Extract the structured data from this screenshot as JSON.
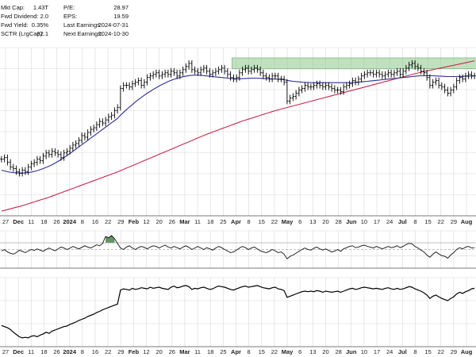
{
  "stats": [
    {
      "label": "Mkt Cap:",
      "value": "1.43T"
    },
    {
      "label": "Fwd Dividend:",
      "value": "2.0"
    },
    {
      "label": "Fwd Yield:",
      "value": "0.35%"
    },
    {
      "label": "SCTR (LrgCap):",
      "value": "82.1"
    },
    {
      "label": "P/E:",
      "value": "28.97"
    },
    {
      "label": "EPS:",
      "value": "19.59"
    },
    {
      "label": "Last Earnings:",
      "value": "2024-07-31"
    },
    {
      "label": "Next Earnings:",
      "value": "2024-10-30"
    }
  ],
  "colors": {
    "price_bar": "#000000",
    "ma_short": "#2f2f9a",
    "ma_long": "#c8284a",
    "resistance_zone": "#8cc88c",
    "oscillator_fill": "#3c7a3c",
    "grid": "#d8d8d8"
  },
  "chart_data": {
    "type": "line",
    "x_axis_labels": [
      {
        "text": "27",
        "bold": false
      },
      {
        "text": "Dec",
        "bold": true
      },
      {
        "text": "11",
        "bold": false
      },
      {
        "text": "18",
        "bold": false
      },
      {
        "text": "26",
        "bold": false
      },
      {
        "text": "2024",
        "bold": true
      },
      {
        "text": "8",
        "bold": false
      },
      {
        "text": "16",
        "bold": false
      },
      {
        "text": "22",
        "bold": false
      },
      {
        "text": "29",
        "bold": false
      },
      {
        "text": "Feb",
        "bold": true
      },
      {
        "text": "12",
        "bold": false
      },
      {
        "text": "20",
        "bold": false
      },
      {
        "text": "26",
        "bold": false
      },
      {
        "text": "Mar",
        "bold": true
      },
      {
        "text": "11",
        "bold": false
      },
      {
        "text": "18",
        "bold": false
      },
      {
        "text": "25",
        "bold": false
      },
      {
        "text": "Apr",
        "bold": true
      },
      {
        "text": "8",
        "bold": false
      },
      {
        "text": "15",
        "bold": false
      },
      {
        "text": "22",
        "bold": false
      },
      {
        "text": "May",
        "bold": true
      },
      {
        "text": "6",
        "bold": false
      },
      {
        "text": "13",
        "bold": false
      },
      {
        "text": "20",
        "bold": false
      },
      {
        "text": "28",
        "bold": false
      },
      {
        "text": "Jun",
        "bold": true
      },
      {
        "text": "10",
        "bold": false
      },
      {
        "text": "17",
        "bold": false
      },
      {
        "text": "24",
        "bold": false
      },
      {
        "text": "Jul",
        "bold": true
      },
      {
        "text": "8",
        "bold": false
      },
      {
        "text": "15",
        "bold": false
      },
      {
        "text": "22",
        "bold": false
      },
      {
        "text": "29",
        "bold": false
      },
      {
        "text": "Aug",
        "bold": true
      }
    ],
    "price_close": [
      0.33,
      0.34,
      0.31,
      0.28,
      0.27,
      0.25,
      0.24,
      0.26,
      0.25,
      0.28,
      0.3,
      0.31,
      0.33,
      0.32,
      0.35,
      0.37,
      0.36,
      0.38,
      0.37,
      0.36,
      0.34,
      0.37,
      0.38,
      0.4,
      0.42,
      0.43,
      0.45,
      0.48,
      0.47,
      0.5,
      0.52,
      0.53,
      0.55,
      0.57,
      0.56,
      0.58,
      0.6,
      0.61,
      0.64,
      0.66,
      0.78,
      0.8,
      0.8,
      0.79,
      0.81,
      0.82,
      0.83,
      0.8,
      0.82,
      0.85,
      0.86,
      0.87,
      0.88,
      0.86,
      0.87,
      0.88,
      0.87,
      0.89,
      0.88,
      0.86,
      0.88,
      0.9,
      0.92,
      0.94,
      0.9,
      0.89,
      0.88,
      0.9,
      0.91,
      0.89,
      0.87,
      0.88,
      0.89,
      0.9,
      0.91,
      0.89,
      0.87,
      0.85,
      0.84,
      0.85,
      0.88,
      0.9,
      0.91,
      0.89,
      0.9,
      0.91,
      0.9,
      0.88,
      0.86,
      0.85,
      0.84,
      0.86,
      0.86,
      0.84,
      0.84,
      0.82,
      0.7,
      0.72,
      0.73,
      0.75,
      0.77,
      0.78,
      0.8,
      0.79,
      0.79,
      0.8,
      0.81,
      0.8,
      0.79,
      0.8,
      0.79,
      0.78,
      0.77,
      0.77,
      0.76,
      0.79,
      0.8,
      0.81,
      0.83,
      0.82,
      0.84,
      0.86,
      0.87,
      0.88,
      0.88,
      0.87,
      0.88,
      0.87,
      0.86,
      0.87,
      0.88,
      0.87,
      0.88,
      0.89,
      0.87,
      0.89,
      0.91,
      0.93,
      0.94,
      0.92,
      0.91,
      0.89,
      0.88,
      0.85,
      0.8,
      0.82,
      0.83,
      0.8,
      0.79,
      0.77,
      0.75,
      0.77,
      0.79,
      0.83,
      0.85,
      0.84,
      0.86,
      0.87,
      0.86,
      0.86
    ],
    "ma_short": [
      0.26,
      0.255,
      0.25,
      0.247,
      0.245,
      0.243,
      0.242,
      0.242,
      0.243,
      0.245,
      0.248,
      0.252,
      0.257,
      0.263,
      0.27,
      0.278,
      0.286,
      0.295,
      0.305,
      0.316,
      0.328,
      0.34,
      0.353,
      0.366,
      0.38,
      0.394,
      0.408,
      0.422,
      0.436,
      0.45,
      0.464,
      0.478,
      0.492,
      0.506,
      0.52,
      0.534,
      0.548,
      0.562,
      0.576,
      0.59,
      0.61,
      0.628,
      0.645,
      0.662,
      0.678,
      0.694,
      0.709,
      0.723,
      0.737,
      0.75,
      0.762,
      0.774,
      0.785,
      0.796,
      0.806,
      0.815,
      0.824,
      0.832,
      0.839,
      0.845,
      0.85,
      0.855,
      0.859,
      0.862,
      0.864,
      0.865,
      0.865,
      0.864,
      0.862,
      0.86,
      0.858,
      0.856,
      0.854,
      0.852,
      0.85,
      0.848,
      0.846,
      0.844,
      0.843,
      0.842,
      0.842,
      0.843,
      0.844,
      0.845,
      0.846,
      0.846,
      0.846,
      0.845,
      0.844,
      0.843,
      0.842,
      0.841,
      0.84,
      0.839,
      0.838,
      0.836,
      0.832,
      0.829,
      0.826,
      0.824,
      0.822,
      0.82,
      0.819,
      0.818,
      0.817,
      0.817,
      0.817,
      0.817,
      0.817,
      0.817,
      0.817,
      0.817,
      0.817,
      0.817,
      0.817,
      0.817,
      0.817,
      0.817,
      0.818,
      0.819,
      0.82,
      0.822,
      0.824,
      0.826,
      0.828,
      0.83,
      0.832,
      0.834,
      0.836,
      0.838,
      0.84,
      0.842,
      0.844,
      0.846,
      0.848,
      0.85,
      0.852,
      0.854,
      0.856,
      0.858,
      0.86,
      0.861,
      0.862,
      0.862,
      0.862,
      0.861,
      0.86,
      0.859,
      0.858,
      0.857,
      0.856,
      0.856,
      0.856,
      0.856,
      0.856,
      0.857,
      0.858,
      0.859,
      0.86,
      0.861
    ],
    "ma_long": [
      0.0,
      0.004,
      0.009,
      0.014,
      0.019,
      0.024,
      0.029,
      0.034,
      0.04,
      0.046,
      0.052,
      0.058,
      0.064,
      0.07,
      0.076,
      0.082,
      0.088,
      0.095,
      0.102,
      0.109,
      0.116,
      0.123,
      0.13,
      0.137,
      0.144,
      0.151,
      0.158,
      0.165,
      0.172,
      0.179,
      0.186,
      0.193,
      0.2,
      0.207,
      0.214,
      0.221,
      0.228,
      0.235,
      0.242,
      0.249,
      0.257,
      0.265,
      0.273,
      0.281,
      0.289,
      0.297,
      0.305,
      0.313,
      0.321,
      0.329,
      0.337,
      0.345,
      0.353,
      0.361,
      0.369,
      0.377,
      0.385,
      0.393,
      0.401,
      0.409,
      0.417,
      0.425,
      0.433,
      0.441,
      0.449,
      0.457,
      0.465,
      0.473,
      0.481,
      0.489,
      0.496,
      0.503,
      0.51,
      0.517,
      0.524,
      0.531,
      0.538,
      0.545,
      0.552,
      0.559,
      0.566,
      0.573,
      0.579,
      0.585,
      0.591,
      0.597,
      0.603,
      0.609,
      0.615,
      0.621,
      0.627,
      0.633,
      0.639,
      0.644,
      0.649,
      0.654,
      0.659,
      0.664,
      0.669,
      0.674,
      0.679,
      0.684,
      0.689,
      0.694,
      0.699,
      0.704,
      0.709,
      0.714,
      0.719,
      0.724,
      0.729,
      0.734,
      0.739,
      0.744,
      0.749,
      0.754,
      0.759,
      0.764,
      0.769,
      0.774,
      0.779,
      0.784,
      0.789,
      0.794,
      0.799,
      0.804,
      0.809,
      0.814,
      0.819,
      0.824,
      0.829,
      0.834,
      0.839,
      0.844,
      0.849,
      0.854,
      0.859,
      0.864,
      0.869,
      0.874,
      0.879,
      0.884,
      0.888,
      0.892,
      0.896,
      0.9,
      0.904,
      0.908,
      0.912,
      0.916,
      0.92,
      0.924,
      0.928,
      0.932,
      0.936,
      0.94,
      0.944,
      0.948,
      0.952,
      0.956
    ],
    "resistance_zone": {
      "from_index": 78,
      "to_index": 159,
      "high": 0.975,
      "low": 0.905
    },
    "oscillator": [
      0.45,
      0.5,
      0.42,
      0.38,
      0.35,
      0.4,
      0.48,
      0.44,
      0.4,
      0.45,
      0.5,
      0.47,
      0.52,
      0.48,
      0.44,
      0.5,
      0.55,
      0.5,
      0.46,
      0.52,
      0.58,
      0.55,
      0.5,
      0.54,
      0.6,
      0.56,
      0.52,
      0.57,
      0.62,
      0.58,
      0.55,
      0.6,
      0.65,
      0.62,
      0.7,
      0.92,
      0.88,
      0.95,
      0.85,
      0.7,
      0.55,
      0.5,
      0.58,
      0.62,
      0.55,
      0.5,
      0.56,
      0.6,
      0.57,
      0.52,
      0.58,
      0.62,
      0.6,
      0.55,
      0.6,
      0.64,
      0.58,
      0.55,
      0.6,
      0.56,
      0.52,
      0.58,
      0.62,
      0.57,
      0.5,
      0.55,
      0.6,
      0.55,
      0.5,
      0.56,
      0.52,
      0.48,
      0.55,
      0.6,
      0.56,
      0.5,
      0.45,
      0.4,
      0.42,
      0.48,
      0.55,
      0.6,
      0.56,
      0.5,
      0.55,
      0.58,
      0.52,
      0.46,
      0.42,
      0.4,
      0.44,
      0.5,
      0.46,
      0.4,
      0.42,
      0.35,
      0.2,
      0.28,
      0.32,
      0.38,
      0.44,
      0.5,
      0.55,
      0.5,
      0.48,
      0.54,
      0.58,
      0.52,
      0.48,
      0.52,
      0.47,
      0.42,
      0.45,
      0.5,
      0.44,
      0.52,
      0.56,
      0.6,
      0.62,
      0.56,
      0.58,
      0.62,
      0.64,
      0.6,
      0.58,
      0.55,
      0.6,
      0.56,
      0.52,
      0.56,
      0.6,
      0.56,
      0.58,
      0.62,
      0.56,
      0.6,
      0.66,
      0.7,
      0.68,
      0.6,
      0.55,
      0.48,
      0.42,
      0.32,
      0.25,
      0.35,
      0.42,
      0.36,
      0.3,
      0.28,
      0.22,
      0.32,
      0.4,
      0.5,
      0.56,
      0.52,
      0.58,
      0.6,
      0.55,
      0.56
    ],
    "relative_line": [
      0.32,
      0.3,
      0.28,
      0.25,
      0.2,
      0.16,
      0.12,
      0.1,
      0.11,
      0.1,
      0.13,
      0.14,
      0.12,
      0.15,
      0.17,
      0.2,
      0.18,
      0.22,
      0.24,
      0.26,
      0.28,
      0.3,
      0.31,
      0.34,
      0.36,
      0.38,
      0.41,
      0.43,
      0.45,
      0.48,
      0.5,
      0.52,
      0.55,
      0.57,
      0.6,
      0.62,
      0.64,
      0.66,
      0.68,
      0.7,
      0.95,
      0.97,
      0.96,
      0.95,
      0.98,
      0.96,
      0.97,
      0.99,
      0.98,
      0.97,
      1.0,
      0.98,
      0.99,
      1.0,
      0.98,
      0.97,
      0.96,
      1.0,
      1.02,
      0.99,
      1.0,
      1.02,
      1.03,
      1.01,
      0.96,
      0.98,
      0.97,
      0.99,
      1.0,
      0.98,
      0.96,
      0.97,
      1.0,
      1.02,
      1.01,
      1.0,
      0.98,
      0.96,
      0.95,
      0.97,
      0.99,
      1.01,
      1.02,
      1.0,
      1.01,
      1.02,
      1.03,
      1.01,
      0.99,
      0.98,
      0.97,
      0.99,
      1.0,
      0.97,
      0.96,
      0.94,
      0.82,
      0.84,
      0.86,
      0.88,
      0.9,
      0.92,
      0.93,
      0.92,
      0.93,
      0.92,
      0.94,
      0.93,
      0.91,
      0.93,
      0.92,
      0.91,
      0.92,
      0.93,
      0.91,
      0.93,
      0.95,
      0.97,
      0.98,
      0.96,
      0.97,
      0.99,
      1.0,
      0.99,
      0.98,
      0.97,
      0.98,
      0.97,
      0.96,
      0.98,
      0.99,
      0.97,
      0.96,
      0.98,
      0.96,
      0.97,
      0.99,
      1.01,
      1.0,
      0.97,
      0.95,
      0.93,
      0.9,
      0.86,
      0.8,
      0.84,
      0.86,
      0.83,
      0.8,
      0.78,
      0.76,
      0.8,
      0.83,
      0.88,
      0.91,
      0.89,
      0.92,
      0.94,
      0.97,
      0.98
    ]
  }
}
